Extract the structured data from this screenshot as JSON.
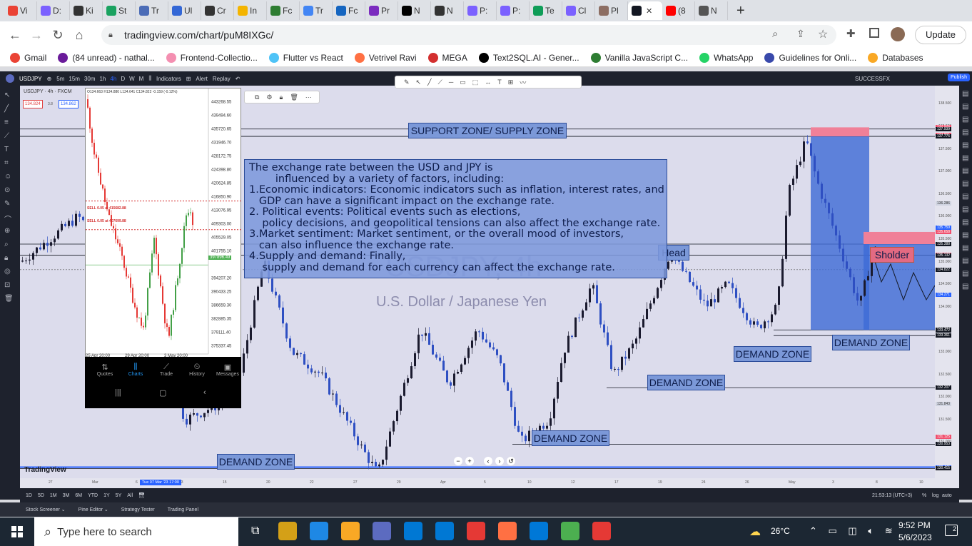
{
  "browser": {
    "tabs": [
      "Vi",
      "D:",
      "Ki",
      "St",
      "Tr",
      "Ul",
      "Cr",
      "In",
      "Fc",
      "Tr",
      "Fc",
      "Pr",
      "N",
      "N",
      "P:",
      "P:",
      "Te",
      "Cl",
      "Pl",
      "",
      "(8",
      "N"
    ],
    "active_tab": "",
    "url": "tradingview.com/chart/puM8IXGc/",
    "update_label": "Update",
    "bookmarks": [
      "Gmail",
      "(84 unread) - nathal...",
      "Frontend-Collectio...",
      "Flutter vs React",
      "Vetrivel Ravi",
      "MEGA",
      "Text2SQL.AI - Gener...",
      "Vanilla JavaScript C...",
      "WhatsApp",
      "Guidelines for Onli...",
      "Databases"
    ]
  },
  "tv": {
    "symbol": "USDJPY",
    "intervals": [
      "5m",
      "15m",
      "30m",
      "1h",
      "4h",
      "D",
      "W",
      "M"
    ],
    "indicators": "Indicators",
    "alert": "Alert",
    "replay": "Replay",
    "account": "SUCCESSFX",
    "publish": "Publish",
    "chart_header": "USDJPY · 4h · FXCM",
    "price_left": "134.824",
    "spread": "3.8",
    "price_right": "134.862",
    "title_watermark": "USDJPY, 4h",
    "subtitle_watermark": "U.S. Dollar / Japanese Yen",
    "logo": "TradingView",
    "ranges": [
      "1D",
      "5D",
      "1M",
      "3M",
      "6M",
      "YTD",
      "1Y",
      "5Y",
      "All"
    ],
    "time_readout": "21:53:13 (UTC+3)",
    "scale_opts": [
      "%",
      "log",
      "auto"
    ],
    "panels": [
      "Stock Screener",
      "Pine Editor",
      "Strategy Tester",
      "Trading Panel"
    ],
    "date_marker": "Tue 07 Mar '23  17:00",
    "time_ticks": [
      "27",
      "Mar",
      "6",
      "13",
      "15",
      "20",
      "22",
      "27",
      "29",
      "Apr",
      "5",
      "10",
      "12",
      "17",
      "19",
      "24",
      "26",
      "May",
      "3",
      "8",
      "10"
    ],
    "price_ticks": [
      "138.500",
      "138.000",
      "137.500",
      "137.000",
      "136.500",
      "136.000",
      "135.500",
      "135.000",
      "134.500",
      "134.000",
      "133.500",
      "133.000",
      "132.500",
      "132.000",
      "131.500",
      "131.000"
    ],
    "price_labels": [
      {
        "v": "137.976",
        "c": "#f0506e"
      },
      {
        "v": "137.939",
        "c": "#131722"
      },
      {
        "v": "137.801",
        "c": "#f0506e"
      },
      {
        "v": "137.776",
        "c": "#131722"
      },
      {
        "v": "136.286",
        "c": "#cfd3e0"
      },
      {
        "v": "135.759",
        "c": "#2962ff"
      },
      {
        "v": "135.658",
        "c": "#f0506e"
      },
      {
        "v": "135.388",
        "c": "#f0506e"
      },
      {
        "v": "135.388",
        "c": "#131722"
      },
      {
        "v": "135.144",
        "c": "#f0506e"
      },
      {
        "v": "135.132",
        "c": "#131722"
      },
      {
        "v": "134.822",
        "c": "#131722"
      },
      {
        "v": "134.271",
        "c": "#2962ff"
      },
      {
        "v": "133.486",
        "c": "#131722"
      },
      {
        "v": "133.484",
        "c": "#131722"
      },
      {
        "v": "133.472",
        "c": "#131722"
      },
      {
        "v": "133.361",
        "c": "#131722"
      },
      {
        "v": "132.207",
        "c": "#131722"
      },
      {
        "v": "131.843",
        "c": "#cfd3e0"
      },
      {
        "v": "131.125",
        "c": "#f0506e"
      },
      {
        "v": "130.953",
        "c": "#131722"
      },
      {
        "v": "130.445",
        "c": "#2962ff"
      },
      {
        "v": "130.415",
        "c": "#131722"
      }
    ]
  },
  "annotations": {
    "supply": "SUPPORT ZONE/ SUPPLY ZONE",
    "head": "Head",
    "shoulder": "Sholder",
    "demand": "DEMAND ZONE",
    "info": [
      "The exchange rate between the USD and JPY is",
      "        influenced by a variety of factors, including:",
      "1.Economic indicators: Economic indicators such as inflation, interest rates, and",
      "   GDP can have a significant impact on the exchange rate.",
      "2. Political events: Political events such as elections,",
      "    policy decisions, and geopolitical tensions can also affect the exchange rate.",
      "3.Market sentiment: Market sentiment, or the overall mood of investors,",
      "   can also influence the exchange rate.",
      "4.Supply and demand: Finally,",
      "    supply and demand for each currency can affect the exchange rate."
    ]
  },
  "phone": {
    "ohlc": "O134.663 H134.880 L134.641 C134.822 -0.159 (-0.12%)",
    "sell1": "SELL 0.05 at 415682.88",
    "sell2": "SELL 0.05 at 407699.88",
    "prices": [
      "443268.55",
      "439494.60",
      "435720.65",
      "431946.70",
      "428172.75",
      "424398.80",
      "420624.85",
      "416850.90",
      "413076.95",
      "409303.00",
      "405529.05",
      "401755.10",
      "394207.20",
      "390433.25",
      "386659.30",
      "382885.35",
      "379111.40",
      "375337.45"
    ],
    "current": "397896.49",
    "dates": [
      "25 Apr 20:00",
      "29 Apr 20:00",
      "3 May 20:00"
    ],
    "tabs": [
      "Quotes",
      "Charts",
      "Trade",
      "History",
      "Messages"
    ]
  },
  "taskbar": {
    "search": "Type here to search",
    "weather": "26°C",
    "time": "9:52 PM",
    "date": "5/6/2023",
    "notifications": "2"
  }
}
